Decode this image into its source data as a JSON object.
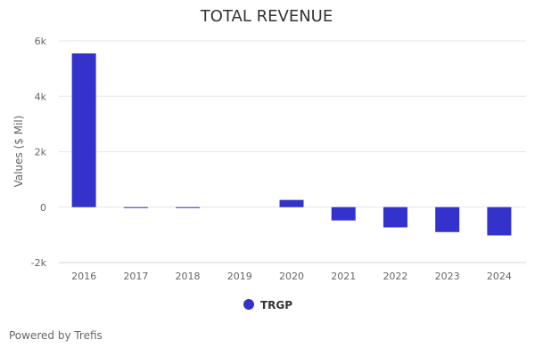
{
  "chart_data": {
    "type": "bar",
    "title": "TOTAL REVENUE",
    "xlabel": "",
    "ylabel": "Values ($ Mil)",
    "categories": [
      "2016",
      "2017",
      "2018",
      "2019",
      "2020",
      "2021",
      "2022",
      "2023",
      "2024"
    ],
    "series": [
      {
        "name": "TRGP",
        "color": "#3333cc",
        "values": [
          5550,
          -30,
          -30,
          0,
          260,
          -480,
          -730,
          -900,
          -1020
        ]
      }
    ],
    "ylim": [
      -2000,
      6000
    ],
    "yticks": [
      -2000,
      0,
      2000,
      4000,
      6000
    ],
    "ytick_labels": [
      "-2k",
      "0",
      "2k",
      "4k",
      "6k"
    ],
    "grid": true,
    "legend_position": "bottom-center"
  },
  "credit": "Powered by Trefis"
}
